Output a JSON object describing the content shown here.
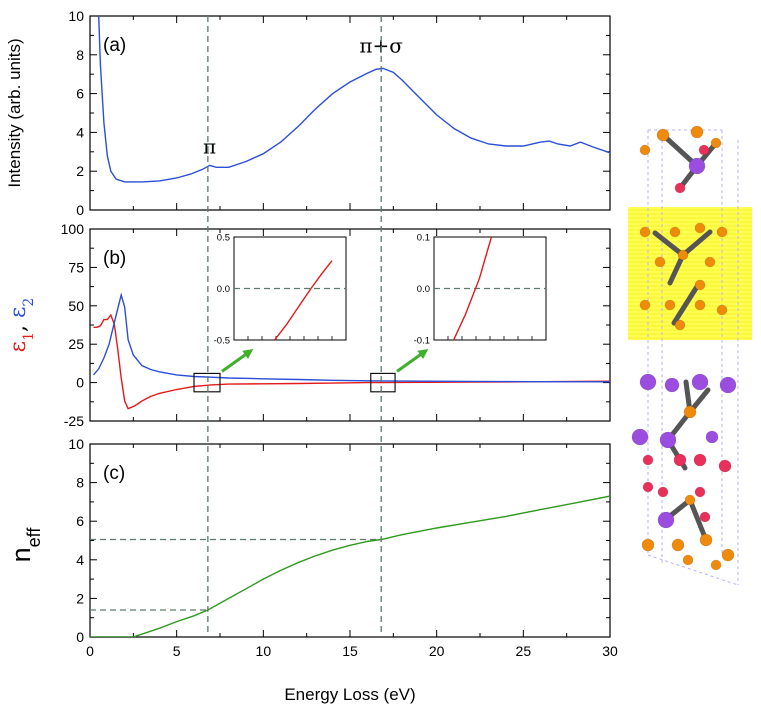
{
  "chart_data": [
    {
      "type": "line",
      "panel_label": "(a)",
      "ylabel": "Intensity (arb. units)",
      "xlim": [
        0,
        30
      ],
      "ylim": [
        0,
        10
      ],
      "yticks": [
        "0",
        "2",
        "4",
        "6",
        "8",
        "10"
      ],
      "annotations": [
        {
          "text": "π",
          "x": 6.9,
          "y": 2.3
        },
        {
          "text": "π+σ",
          "x": 16.8,
          "y": 7.3
        }
      ],
      "series": [
        {
          "color": "#2b4fd6",
          "x": [
            0.5,
            0.6,
            0.8,
            1.0,
            1.2,
            1.5,
            2.0,
            3.0,
            4.0,
            5.0,
            5.8,
            6.5,
            6.9,
            7.3,
            8.0,
            9.0,
            10.0,
            11.0,
            12.0,
            13.0,
            14.0,
            15.0,
            16.0,
            16.5,
            16.9,
            17.5,
            18.0,
            19.0,
            20.0,
            21.0,
            22.0,
            23.0,
            24.0,
            25.0,
            26.0,
            26.5,
            27.0,
            27.7,
            28.3,
            29.0,
            30.0
          ],
          "y": [
            10,
            7.5,
            4.5,
            2.8,
            2.0,
            1.6,
            1.45,
            1.45,
            1.5,
            1.65,
            1.85,
            2.1,
            2.3,
            2.2,
            2.2,
            2.5,
            2.9,
            3.5,
            4.3,
            5.2,
            6.0,
            6.6,
            7.05,
            7.25,
            7.3,
            7.1,
            6.7,
            5.8,
            4.9,
            4.2,
            3.7,
            3.4,
            3.3,
            3.3,
            3.5,
            3.55,
            3.4,
            3.3,
            3.5,
            3.25,
            2.95
          ]
        }
      ]
    },
    {
      "type": "line",
      "panel_label": "(b)",
      "ylabel": [
        "ε",
        "1",
        ", ",
        "ε",
        "2"
      ],
      "xlim": [
        0,
        30
      ],
      "ylim": [
        -25,
        100
      ],
      "yticks": [
        "-25",
        "0",
        "25",
        "50",
        "75",
        "100"
      ],
      "series": [
        {
          "color": "#e11a1a",
          "x": [
            0.2,
            0.4,
            0.6,
            0.8,
            1.0,
            1.2,
            1.4,
            1.6,
            1.8,
            2.0,
            2.2,
            2.4,
            2.6,
            3.0,
            3.5,
            4.0,
            5.0,
            6.0,
            7.0,
            8.0,
            10.0,
            12.0,
            14.0,
            16.0,
            18.0,
            22.0,
            26.0,
            30.0
          ],
          "y": [
            36,
            36,
            37,
            41,
            41,
            44,
            38,
            22,
            3,
            -12,
            -17,
            -16,
            -15,
            -12,
            -9,
            -7,
            -4.5,
            -2.5,
            -1.5,
            -1.0,
            -0.8,
            -0.6,
            -0.3,
            0.0,
            0.1,
            0.3,
            0.6,
            0.9
          ]
        },
        {
          "color": "#2b4fd6",
          "x": [
            0.2,
            0.5,
            0.8,
            1.1,
            1.4,
            1.6,
            1.8,
            2.0,
            2.2,
            2.5,
            3.0,
            3.5,
            4.0,
            5.0,
            6.0,
            7.0,
            8.0,
            10.0,
            12.0,
            14.0,
            16.0,
            18.0,
            22.0,
            26.0,
            30.0
          ],
          "y": [
            5,
            9,
            16,
            25,
            39,
            48,
            57,
            49,
            28,
            18,
            11,
            8.5,
            7,
            5,
            4,
            3.5,
            3,
            2.5,
            2.0,
            1.5,
            1.2,
            1.0,
            0.8,
            0.6,
            0.5
          ]
        }
      ],
      "boxes": [
        {
          "x": [
            6.0,
            7.5
          ],
          "y": [
            -6,
            6
          ]
        },
        {
          "x": [
            16.2,
            17.6
          ],
          "y": [
            -6,
            6
          ]
        }
      ],
      "insets": [
        {
          "xlim": [
            6.5,
            8.1
          ],
          "ylim": [
            -0.5,
            0.5
          ],
          "yticks": [
            "-0.5",
            "0.0",
            "0.5"
          ],
          "dashed_y": 0.0,
          "series": [
            {
              "color": "#e11a1a",
              "x": [
                7.08,
                7.25,
                7.45,
                7.6,
                7.75,
                7.9
              ],
              "y": [
                -0.5,
                -0.35,
                -0.15,
                0.0,
                0.14,
                0.27
              ]
            }
          ]
        },
        {
          "xlim": [
            16.6,
            18.2
          ],
          "ylim": [
            -0.1,
            0.1
          ],
          "yticks": [
            "-0.1",
            "0.0",
            "0.1"
          ],
          "dashed_y": 0.0,
          "series": [
            {
              "color": "#e11a1a",
              "x": [
                16.88,
                17.05,
                17.25,
                17.42
              ],
              "y": [
                -0.1,
                -0.05,
                0.02,
                0.1
              ]
            }
          ]
        }
      ]
    },
    {
      "type": "line",
      "panel_label": "(c)",
      "ylabel": [
        "n",
        "eff"
      ],
      "xlabel": "Energy Loss (eV)",
      "xlim": [
        0,
        30
      ],
      "ylim": [
        0,
        10
      ],
      "xticks": [
        "0",
        "5",
        "10",
        "15",
        "20",
        "25",
        "30"
      ],
      "yticks": [
        "0",
        "2",
        "4",
        "6",
        "8",
        "10"
      ],
      "series": [
        {
          "color": "#2f9a1f",
          "x": [
            0,
            2.5,
            4,
            5,
            6,
            6.8,
            8,
            9,
            10,
            11,
            12,
            13,
            14,
            15,
            16,
            16.8,
            18,
            20,
            22,
            24,
            26,
            28,
            30
          ],
          "y": [
            0,
            0,
            0.45,
            0.8,
            1.1,
            1.4,
            2.0,
            2.5,
            3.0,
            3.45,
            3.85,
            4.2,
            4.5,
            4.75,
            4.95,
            5.05,
            5.3,
            5.65,
            5.95,
            6.25,
            6.6,
            6.95,
            7.3
          ]
        }
      ],
      "guides": [
        {
          "x": 6.8,
          "y": 1.4
        },
        {
          "x": 16.8,
          "y": 5.05
        }
      ]
    }
  ],
  "vertical_guides_x": [
    6.8,
    16.8
  ],
  "crystal_structure": {
    "atom_colors": {
      "orange": "#f08a0a",
      "purple": "#9b4de0",
      "pink": "#e8305a",
      "bond": "#555555",
      "cell": "#b9b2ff"
    },
    "highlight_color": "#ffff33"
  }
}
